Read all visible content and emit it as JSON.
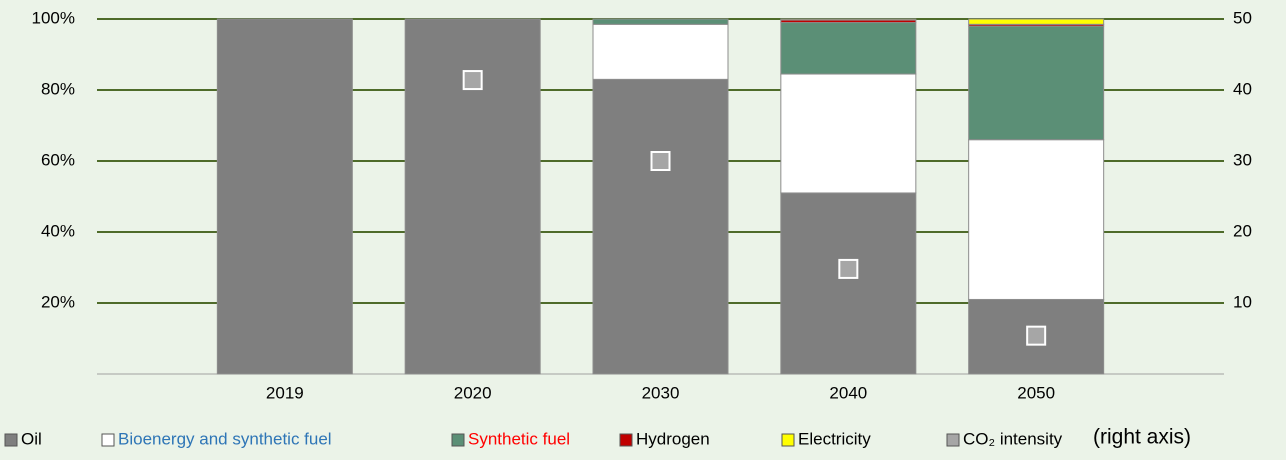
{
  "chart_data": {
    "type": "bar",
    "stacked": true,
    "categories": [
      "2019",
      "2020",
      "2030",
      "2040",
      "2050"
    ],
    "series": [
      {
        "name": "Oil",
        "color": "#7f7f7f",
        "label_color": "#000000",
        "values": [
          100,
          100,
          83,
          51,
          21
        ]
      },
      {
        "name": "Bioenergy and synthetic fuel",
        "color": "#ffffff",
        "label_color": "#2e75b6",
        "values": [
          0,
          0,
          15.5,
          33.5,
          45
        ]
      },
      {
        "name": "Synthetic fuel",
        "color": "#5b8f76",
        "label_color": "#ff0000",
        "values": [
          0,
          0,
          1.5,
          14.5,
          32
        ]
      },
      {
        "name": "Hydrogen",
        "color": "#c00000",
        "label_color": "#000000",
        "values": [
          0,
          0,
          0,
          0.7,
          0.5
        ]
      },
      {
        "name": "Electricity",
        "color": "#ffff00",
        "label_color": "#000000",
        "values": [
          0,
          0,
          0,
          0.3,
          1.5
        ]
      },
      {
        "name": "CO₂ intensity",
        "color": "#a6a6a6",
        "label_color": "#000000",
        "axis": "y2",
        "marker": "square",
        "values": [
          null,
          41.4,
          30,
          14.8,
          5.4
        ]
      }
    ],
    "legend_note": "(right axis)",
    "ylim": [
      0,
      100
    ],
    "yticks": [
      {
        "value": 20,
        "label": "20%"
      },
      {
        "value": 40,
        "label": "40%"
      },
      {
        "value": 60,
        "label": "60%"
      },
      {
        "value": 80,
        "label": "80%"
      },
      {
        "value": 100,
        "label": "100%"
      }
    ],
    "y2lim": [
      0,
      50
    ],
    "y2ticks": [
      10,
      20,
      30,
      40,
      50
    ],
    "grid": true
  }
}
